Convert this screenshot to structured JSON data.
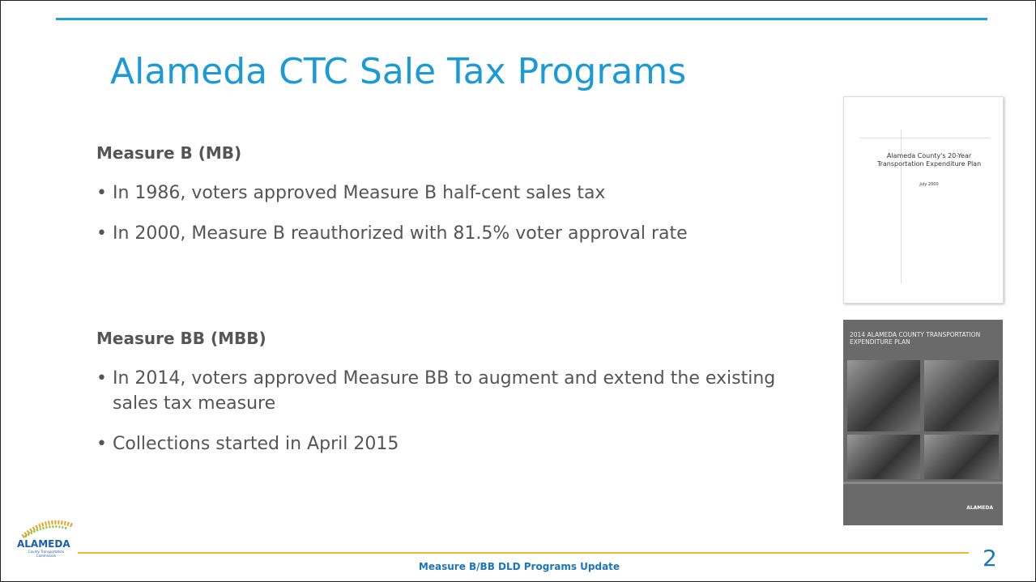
{
  "header": {
    "title": "Alameda CTC Sale Tax Programs"
  },
  "sections": [
    {
      "heading": "Measure B (MB)",
      "bullets": [
        "In 1986, voters approved Measure B half-cent sales tax",
        "In 2000, Measure B reauthorized with 81.5% voter approval rate"
      ]
    },
    {
      "heading": "Measure BB (MBB)",
      "bullets": [
        "In 2014, voters approved Measure BB to augment and extend the existing sales tax measure",
        "Collections started in April 2015"
      ]
    }
  ],
  "covers": [
    {
      "title": "Alameda County's 20-Year Transportation Expenditure Plan",
      "date": "July 2000"
    },
    {
      "title": "2014 ALAMEDA COUNTY TRANSPORTATION EXPENDITURE PLAN",
      "logo": "ALAMEDA"
    }
  ],
  "logo": {
    "name": "ALAMEDA",
    "subtitle": "County Transportation Commission"
  },
  "footer": {
    "text": "Measure B/BB DLD Programs Update",
    "page_number": "2"
  }
}
